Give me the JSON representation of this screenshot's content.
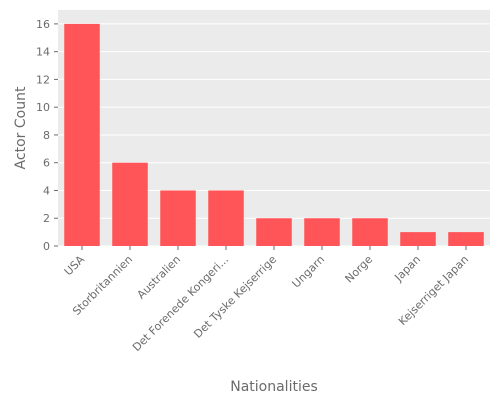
{
  "chart_data": {
    "type": "bar",
    "categories": [
      "USA",
      "Storbritannien",
      "Australien",
      "Det Forenede Kongeri...",
      "Det Tyske Kejserrige",
      "Ungarn",
      "Norge",
      "Japan",
      "Kejserriget Japan"
    ],
    "values": [
      16,
      6,
      4,
      4,
      2,
      2,
      2,
      1,
      1
    ],
    "xlabel": "Nationalities",
    "ylabel": "Actor Count",
    "ylim": [
      0,
      17
    ],
    "yticks": [
      0,
      2,
      4,
      6,
      8,
      10,
      12,
      14,
      16
    ],
    "grid": true,
    "bar_color": "#ff5558",
    "plot_background": "#ebebeb",
    "grid_color": "#ffffff",
    "text_color": "#6b6b6b"
  }
}
